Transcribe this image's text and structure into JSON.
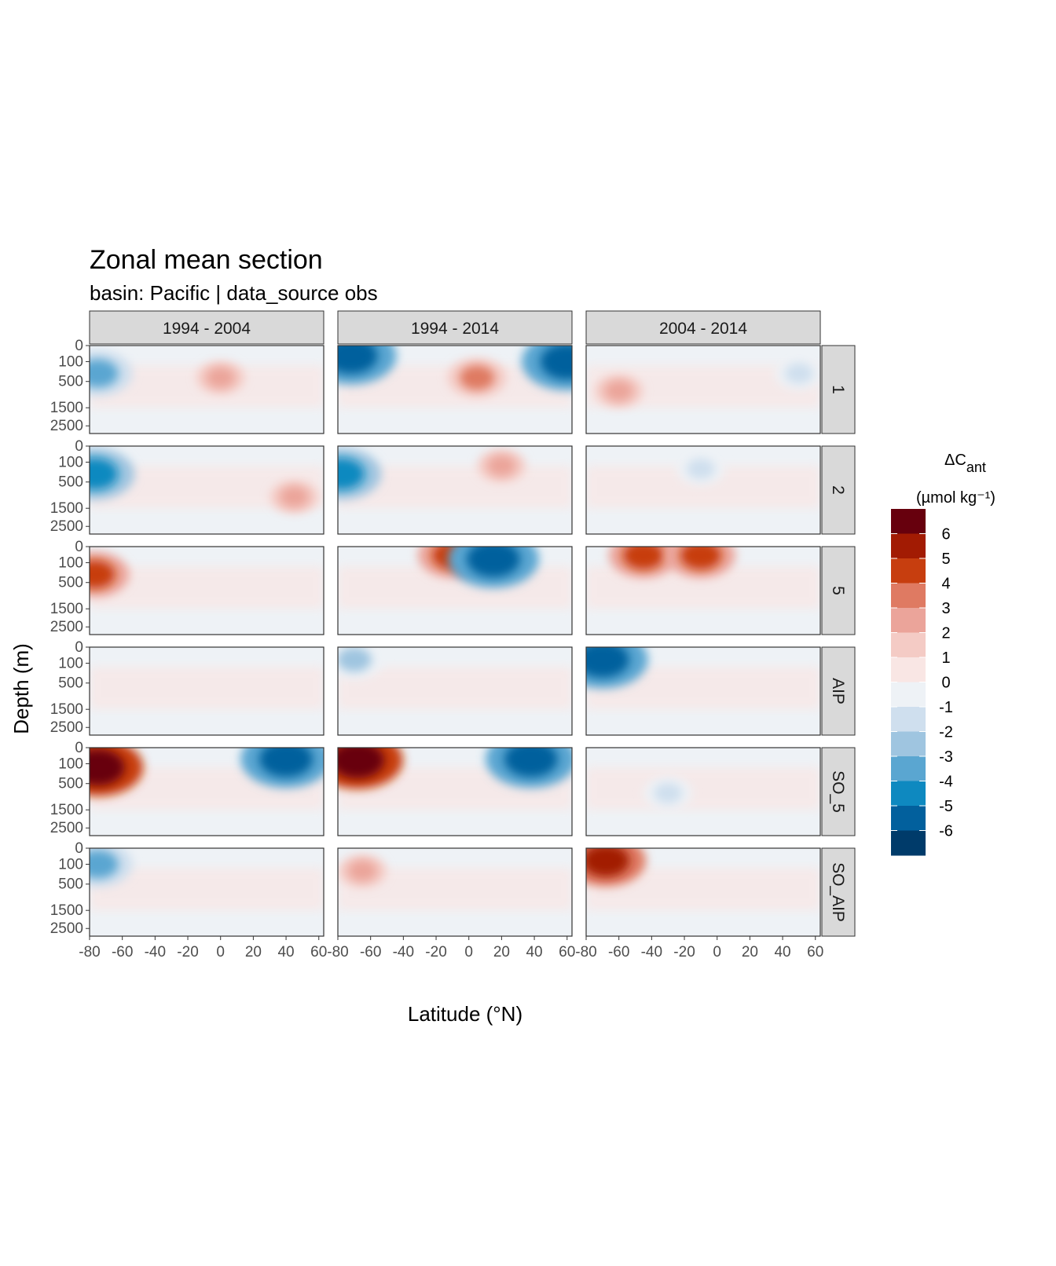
{
  "chart_data": {
    "type": "heatmap",
    "title": "Zonal mean section",
    "subtitle": "basin: Pacific | data_source obs",
    "xlabel": "Latitude (°N)",
    "ylabel": "Depth (m)",
    "column_facets": [
      "1994 - 2004",
      "1994 - 2014",
      "2004 - 2014"
    ],
    "row_facets": [
      "1",
      "2",
      "5",
      "AIP",
      "SO_5",
      "SO_AIP"
    ],
    "x_ticks": [
      "-80",
      "-60",
      "-40",
      "-20",
      "0",
      "20",
      "40",
      "60"
    ],
    "x_tick_values": [
      -80,
      -60,
      -40,
      -20,
      0,
      20,
      40,
      60
    ],
    "xlim": [
      -80,
      63
    ],
    "y_ticks": [
      "0",
      "100",
      "500",
      "1500",
      "2500"
    ],
    "y_tick_values": [
      0,
      100,
      500,
      1500,
      2500
    ],
    "ylim": [
      0,
      3000
    ],
    "y_scale": "sqrt",
    "legend": {
      "title_main": "ΔC",
      "title_sub": "ant",
      "title_unit": "(µmol kg⁻¹)",
      "placement": "right",
      "labels": [
        "6",
        "5",
        "4",
        "3",
        "2",
        "1",
        "0",
        "-1",
        "-2",
        "-3",
        "-4",
        "-5",
        "-6"
      ],
      "colors": [
        "#67000d",
        "#a21b03",
        "#c73e0f",
        "#df7a62",
        "#eba49a",
        "#f4cbc5",
        "#f9e6e4",
        "#eef2f6",
        "#cfdfee",
        "#9fc5e0",
        "#5aa6d1",
        "#0e89c0",
        "#02609d",
        "#003b6a"
      ]
    },
    "features": [
      {
        "panel": "1|1994 - 2004",
        "lat": -75,
        "depth": 300,
        "value": -4
      },
      {
        "panel": "1|1994 - 2004",
        "lat": 0,
        "depth": 400,
        "value": 2
      },
      {
        "panel": "1|1994 - 2014",
        "lat": -72,
        "depth": 40,
        "value": -6
      },
      {
        "panel": "1|1994 - 2014",
        "lat": 5,
        "depth": 400,
        "value": 3
      },
      {
        "panel": "1|1994 - 2014",
        "lat": 60,
        "depth": 100,
        "value": -6
      },
      {
        "panel": "1|2004 - 2014",
        "lat": -60,
        "depth": 800,
        "value": 2
      },
      {
        "panel": "1|2004 - 2014",
        "lat": 50,
        "depth": 300,
        "value": -2
      },
      {
        "panel": "2|1994 - 2004",
        "lat": -77,
        "depth": 300,
        "value": -5
      },
      {
        "panel": "2|1994 - 2004",
        "lat": 45,
        "depth": 1000,
        "value": 2
      },
      {
        "panel": "2|1994 - 2014",
        "lat": -78,
        "depth": 300,
        "value": -5
      },
      {
        "panel": "2|1994 - 2014",
        "lat": 20,
        "depth": 150,
        "value": 2
      },
      {
        "panel": "2|2004 - 2014",
        "lat": -10,
        "depth": 200,
        "value": -2
      },
      {
        "panel": "5|1994 - 2004",
        "lat": -77,
        "depth": 300,
        "value": 4
      },
      {
        "panel": "5|1994 - 2014",
        "lat": -10,
        "depth": 30,
        "value": 4
      },
      {
        "panel": "5|1994 - 2014",
        "lat": 15,
        "depth": 60,
        "value": -6
      },
      {
        "panel": "5|2004 - 2014",
        "lat": -45,
        "depth": 30,
        "value": 4
      },
      {
        "panel": "5|2004 - 2014",
        "lat": -10,
        "depth": 30,
        "value": 4
      },
      {
        "panel": "AIP|1994 - 2014",
        "lat": -70,
        "depth": 60,
        "value": -3
      },
      {
        "panel": "AIP|2004 - 2014",
        "lat": -70,
        "depth": 60,
        "value": -6
      },
      {
        "panel": "SO_5|1994 - 2004",
        "lat": -75,
        "depth": 150,
        "value": 6
      },
      {
        "panel": "SO_5|1994 - 2004",
        "lat": 40,
        "depth": 50,
        "value": -6
      },
      {
        "panel": "SO_5|1994 - 2014",
        "lat": -68,
        "depth": 60,
        "value": 6
      },
      {
        "panel": "SO_5|1994 - 2014",
        "lat": 38,
        "depth": 50,
        "value": -6
      },
      {
        "panel": "SO_5|2004 - 2014",
        "lat": -30,
        "depth": 800,
        "value": -2
      },
      {
        "panel": "SO_AIP|1994 - 2004",
        "lat": -75,
        "depth": 100,
        "value": -4
      },
      {
        "panel": "SO_AIP|1994 - 2014",
        "lat": -65,
        "depth": 200,
        "value": 2
      },
      {
        "panel": "SO_AIP|2004 - 2014",
        "lat": -68,
        "depth": 60,
        "value": 5
      }
    ]
  }
}
